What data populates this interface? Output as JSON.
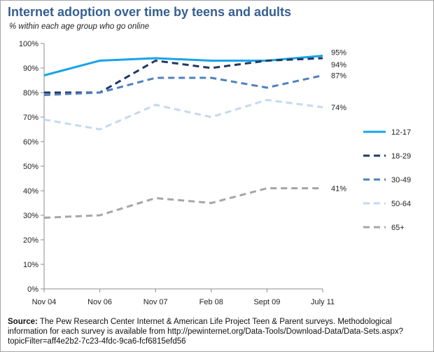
{
  "title": "Internet adoption over time by teens and adults",
  "subtitle": "% within each age group who go online",
  "source_label": "Source:",
  "source_text": "The Pew Research Center Internet & American Life Project Teen & Parent surveys. Methodological information for each survey is available from http://pewinternet.org/Data-Tools/Download-Data/Data-Sets.aspx?topicFilter=aff4e2b2-7c23-4fdc-9ca6-fcf6815efd56",
  "chart_data": {
    "type": "line",
    "categories": [
      "Nov 04",
      "Nov 06",
      "Nov 07",
      "Feb 08",
      "Sept 09",
      "July 11"
    ],
    "y_ticks": [
      "0%",
      "10%",
      "20%",
      "30%",
      "40%",
      "50%",
      "60%",
      "70%",
      "80%",
      "90%",
      "100%"
    ],
    "ylim": [
      0,
      100
    ],
    "grid": false,
    "legend_position": "right",
    "series": [
      {
        "name": "12-17",
        "values": [
          87,
          93,
          94,
          93,
          93,
          95
        ],
        "end_label": "95%",
        "color": "#1aa3e8",
        "style": "solid"
      },
      {
        "name": "18-29",
        "values": [
          80,
          80,
          93,
          90,
          93,
          94
        ],
        "end_label": "94%",
        "color": "#1f3864",
        "style": "dashed"
      },
      {
        "name": "30-49",
        "values": [
          79,
          80,
          86,
          86,
          82,
          87
        ],
        "end_label": "87%",
        "color": "#4f81bd",
        "style": "dashed"
      },
      {
        "name": "50-64",
        "values": [
          69,
          65,
          75,
          70,
          77,
          74
        ],
        "end_label": "74%",
        "color": "#c5d9f1",
        "style": "dashed"
      },
      {
        "name": "65+",
        "values": [
          29,
          30,
          37,
          35,
          41,
          41
        ],
        "end_label": "41%",
        "color": "#a6a6a6",
        "style": "dashed"
      }
    ]
  }
}
